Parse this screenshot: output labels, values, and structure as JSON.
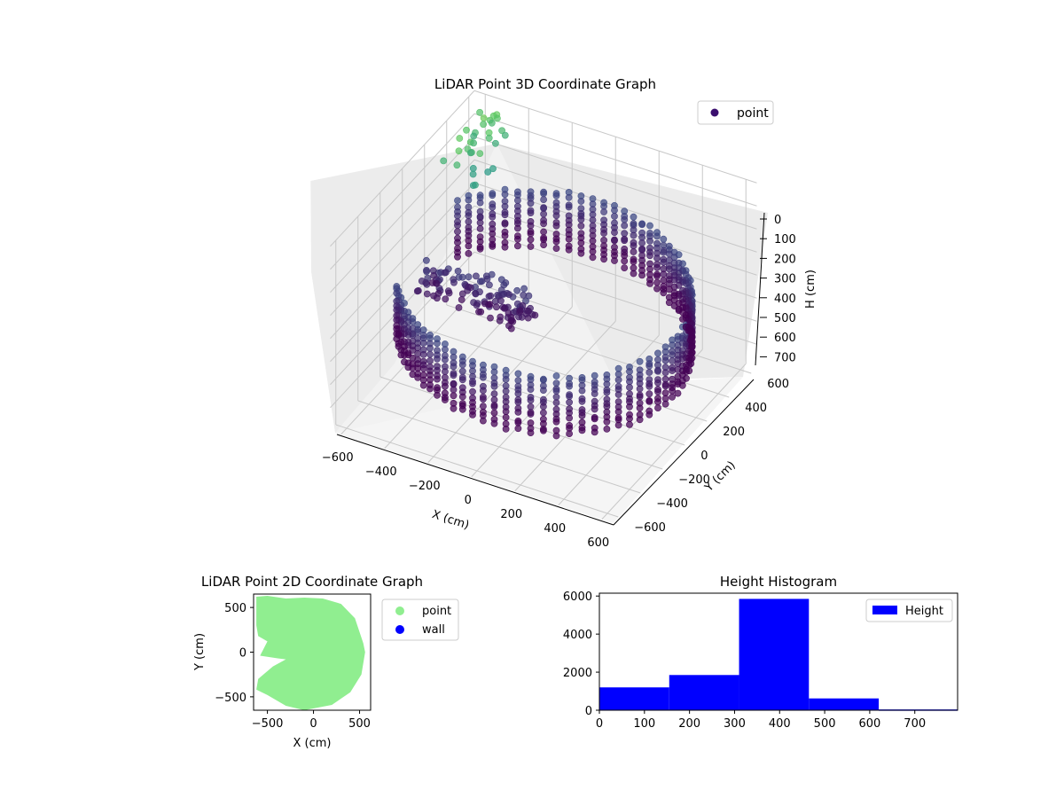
{
  "chart_data": [
    {
      "type": "scatter",
      "title": "LiDAR Point 3D Coordinate Graph",
      "xlabel": "X (cm)",
      "ylabel": "Y (cm)",
      "zlabel": "H (cm)",
      "xticks": [
        "−600",
        "−400",
        "−200",
        "0",
        "200",
        "400",
        "600"
      ],
      "yticks": [
        "−600",
        "−400",
        "−200",
        "0",
        "200",
        "400",
        "600"
      ],
      "zticks": [
        "0",
        "100",
        "200",
        "300",
        "400",
        "500",
        "600",
        "700"
      ],
      "xlim": [
        -650,
        650
      ],
      "ylim": [
        -650,
        650
      ],
      "zlim": [
        0,
        800
      ],
      "z_axis_inverted": true,
      "legend": {
        "position": "top-right",
        "entries": [
          "point"
        ]
      },
      "colormap": "viridis",
      "series": [
        {
          "name": "point",
          "description_shape": "ring-shaped wall of points around origin",
          "ring_radius_range": [
            330,
            640
          ],
          "height_range": [
            300,
            560
          ],
          "sample_points": [
            [
              560,
              0,
              340
            ],
            [
              480,
              300,
              360
            ],
            [
              300,
              500,
              320
            ],
            [
              0,
              580,
              300
            ],
            [
              -300,
              480,
              330
            ],
            [
              -520,
              200,
              360
            ],
            [
              -560,
              -100,
              380
            ],
            [
              -420,
              -380,
              420
            ],
            [
              -150,
              -560,
              440
            ],
            [
              150,
              -560,
              450
            ],
            [
              400,
              -420,
              440
            ],
            [
              560,
              -200,
              400
            ],
            [
              -620,
              640,
              80
            ],
            [
              -600,
              560,
              120
            ],
            [
              -580,
              480,
              160
            ],
            [
              -540,
              400,
              60
            ]
          ]
        }
      ]
    },
    {
      "type": "scatter",
      "title": "LiDAR Point 2D Coordinate Graph",
      "xlabel": "X (cm)",
      "ylabel": "Y (cm)",
      "xticks": [
        "−500",
        "0",
        "500"
      ],
      "yticks": [
        "−500",
        "0",
        "500"
      ],
      "xlim": [
        -650,
        620
      ],
      "ylim": [
        -650,
        650
      ],
      "legend": {
        "position": "right",
        "entries": [
          "point",
          "wall"
        ]
      },
      "series": [
        {
          "name": "point",
          "color": "#90ee90",
          "outline": [
            [
              -620,
              620
            ],
            [
              -500,
              630
            ],
            [
              -300,
              600
            ],
            [
              -100,
              610
            ],
            [
              100,
              600
            ],
            [
              300,
              540
            ],
            [
              450,
              380
            ],
            [
              540,
              100
            ],
            [
              560,
              0
            ],
            [
              520,
              -250
            ],
            [
              400,
              -450
            ],
            [
              200,
              -590
            ],
            [
              -100,
              -650
            ],
            [
              -300,
              -600
            ],
            [
              -500,
              -480
            ],
            [
              -620,
              -420
            ],
            [
              -600,
              -300
            ],
            [
              -440,
              -160
            ],
            [
              -300,
              -80
            ],
            [
              -380,
              -70
            ],
            [
              -580,
              -40
            ],
            [
              -500,
              120
            ],
            [
              -600,
              180
            ],
            [
              -620,
              300
            ]
          ]
        },
        {
          "name": "wall",
          "color": "#0000ff",
          "points": []
        }
      ]
    },
    {
      "type": "bar",
      "title": "Height Histogram",
      "xlabel": "",
      "ylabel": "",
      "xticks": [
        "0",
        "100",
        "200",
        "300",
        "400",
        "500",
        "600",
        "700"
      ],
      "yticks": [
        "0",
        "2000",
        "4000",
        "6000"
      ],
      "xlim": [
        0,
        795
      ],
      "ylim": [
        0,
        6150
      ],
      "legend": {
        "position": "top-right",
        "entries": [
          "Height"
        ]
      },
      "series": [
        {
          "name": "Height",
          "color": "#0000ff",
          "bins": [
            {
              "x0": 0,
              "x1": 155,
              "value": 1200
            },
            {
              "x0": 155,
              "x1": 310,
              "value": 1850
            },
            {
              "x0": 310,
              "x1": 465,
              "value": 5850
            },
            {
              "x0": 465,
              "x1": 620,
              "value": 620
            },
            {
              "x0": 620,
              "x1": 795,
              "value": 40
            }
          ]
        }
      ]
    }
  ]
}
